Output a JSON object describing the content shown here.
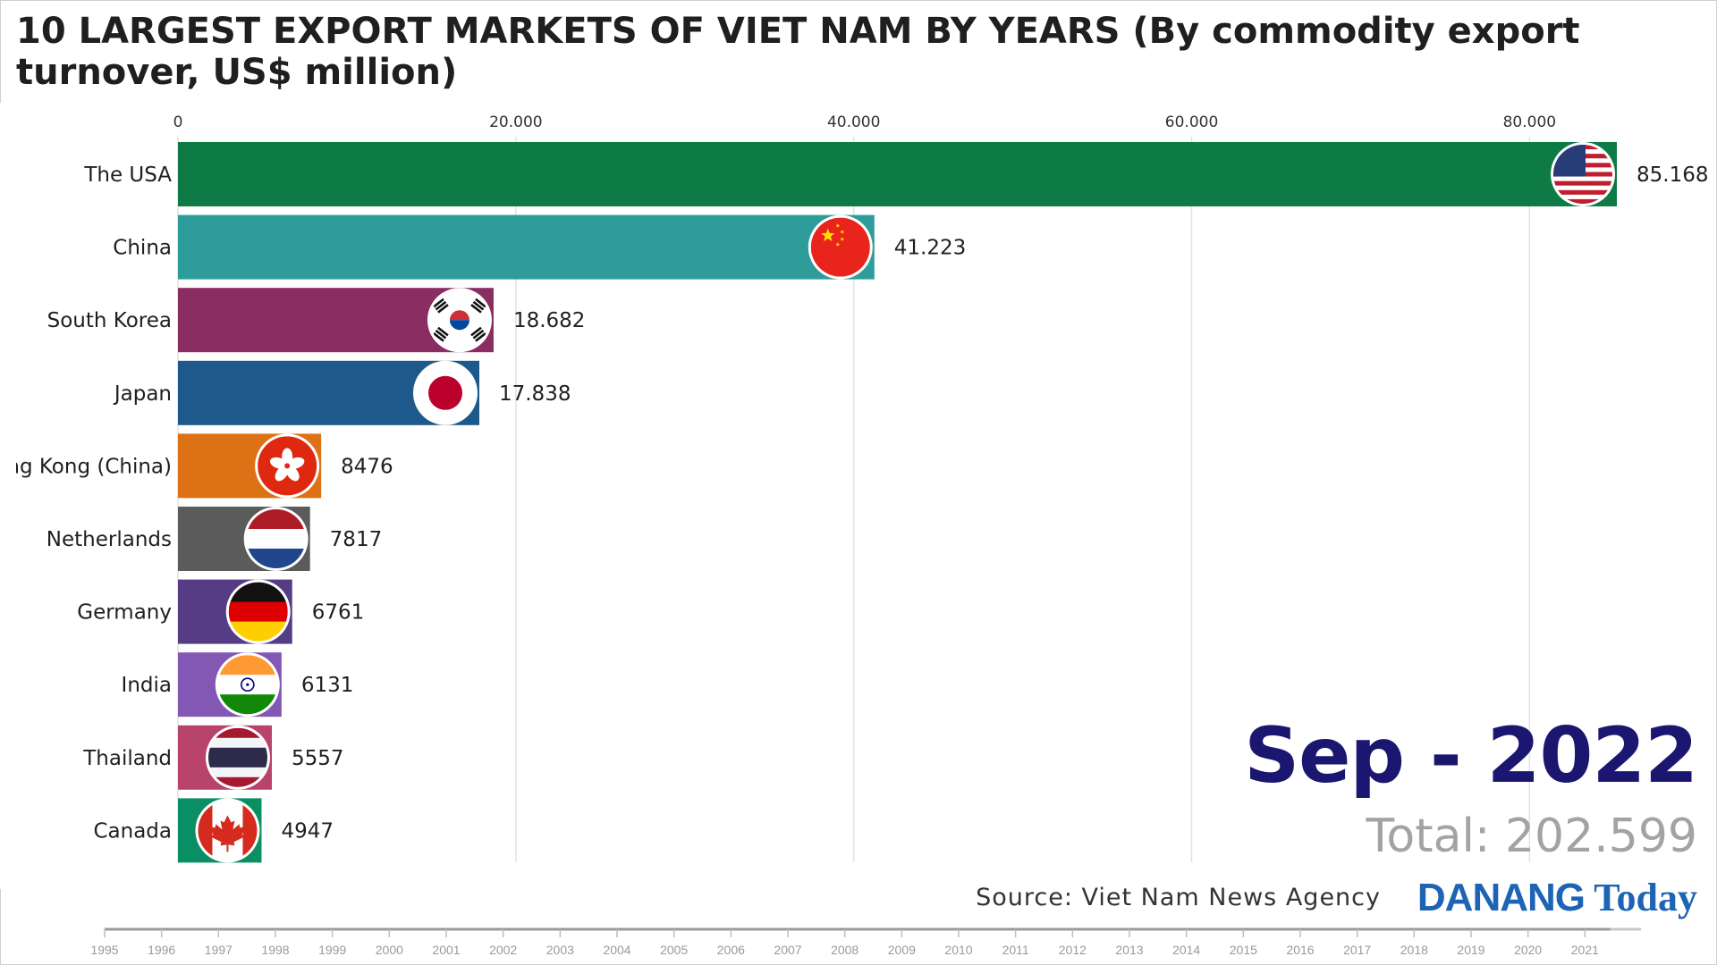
{
  "title": "10 LARGEST EXPORT MARKETS OF VIET NAM BY YEARS (By commodity export turnover, US$ million)",
  "chart_data": {
    "type": "bar",
    "orientation": "horizontal",
    "categories": [
      "The USA",
      "China",
      "South Korea",
      "Japan",
      "Hong Kong (China)",
      "Netherlands",
      "Germany",
      "India",
      "Thailand",
      "Canada"
    ],
    "values": [
      85168,
      41223,
      18682,
      17838,
      8476,
      7817,
      6761,
      6131,
      5557,
      4947
    ],
    "value_labels": [
      "85.168",
      "41.223",
      "18.682",
      "17.838",
      "8476",
      "7817",
      "6761",
      "6131",
      "5557",
      "4947"
    ],
    "colors": [
      "#0e7a46",
      "#2e9d9a",
      "#8a2d60",
      "#1d5a8b",
      "#dd7116",
      "#5b5b5b",
      "#563c85",
      "#8258b4",
      "#b8446c",
      "#098f63"
    ],
    "flags": [
      "usa-flag-icon",
      "china-flag-icon",
      "south-korea-flag-icon",
      "japan-flag-icon",
      "hong-kong-flag-icon",
      "netherlands-flag-icon",
      "germany-flag-icon",
      "india-flag-icon",
      "thailand-flag-icon",
      "canada-flag-icon"
    ],
    "xlim": [
      0,
      85168
    ],
    "x_ticks": [
      0,
      20000,
      40000,
      60000,
      80000
    ],
    "x_tick_labels": [
      "0",
      "20.000",
      "40.000",
      "60.000",
      "80.000"
    ],
    "grid": true,
    "axis_position": "top"
  },
  "period_label": "Sep - 2022",
  "total_label": "Total: 202.599",
  "source": "Source: Viet Nam News Agency",
  "logo": {
    "part1": "DANANG",
    "part2": " Today"
  },
  "timeline": {
    "years": [
      "1995",
      "1996",
      "1997",
      "1998",
      "1999",
      "2000",
      "2001",
      "2002",
      "2003",
      "2004",
      "2005",
      "2006",
      "2007",
      "2008",
      "2009",
      "2010",
      "2011",
      "2012",
      "2013",
      "2014",
      "2015",
      "2016",
      "2017",
      "2018",
      "2019",
      "2020",
      "2021"
    ],
    "progress_fraction": 0.98
  }
}
